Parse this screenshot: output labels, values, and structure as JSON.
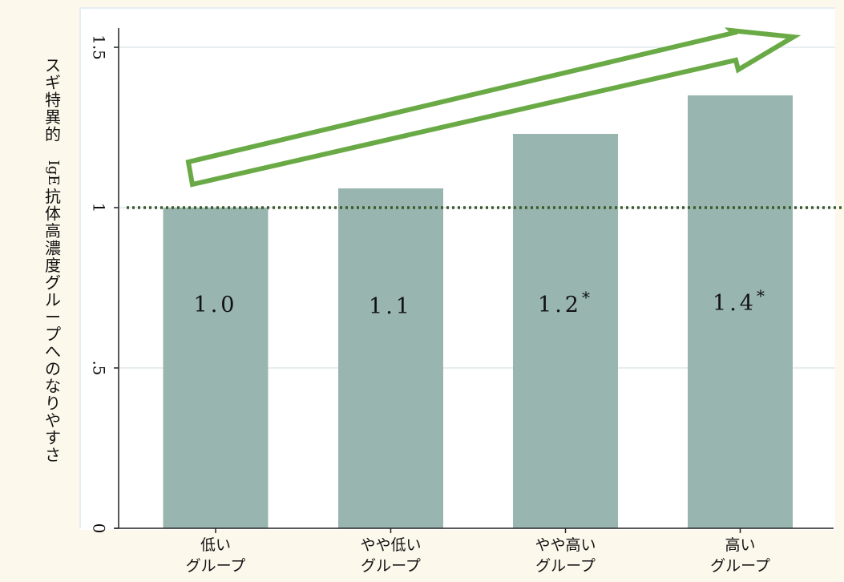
{
  "chart_data": {
    "type": "bar",
    "title": "",
    "xlabel": "",
    "ylabel": "スギ特異的 IgE 抗体高濃度グループへのなりやすさ",
    "categories": [
      [
        "低い",
        "グループ"
      ],
      [
        "やや低い",
        "グループ"
      ],
      [
        "やや高い",
        "グループ"
      ],
      [
        "高い",
        "グループ"
      ]
    ],
    "values": [
      1.0,
      1.06,
      1.23,
      1.35
    ],
    "data_labels": [
      "1.0",
      "1.1",
      "1.2",
      "1.4"
    ],
    "significance_marks": [
      "",
      "",
      "*",
      "*"
    ],
    "ylim": [
      0,
      1.5
    ],
    "yticks": [
      {
        "value": 0,
        "label": "0"
      },
      {
        "value": 0.5,
        "label": ".5"
      },
      {
        "value": 1,
        "label": "1"
      },
      {
        "value": 1.5,
        "label": "1.5"
      }
    ],
    "reference_line": {
      "value": 1,
      "style": "dotted",
      "color": "#3a5a2a"
    },
    "trend_arrow": true,
    "grid": true,
    "colors": {
      "bar": "#98b5af",
      "arrow_stroke": "#6aaa46",
      "arrow_fill": "#ffffff",
      "grid": "#dfe9ea",
      "background": "#fdf8ec",
      "plot_background": "#ffffff"
    }
  }
}
